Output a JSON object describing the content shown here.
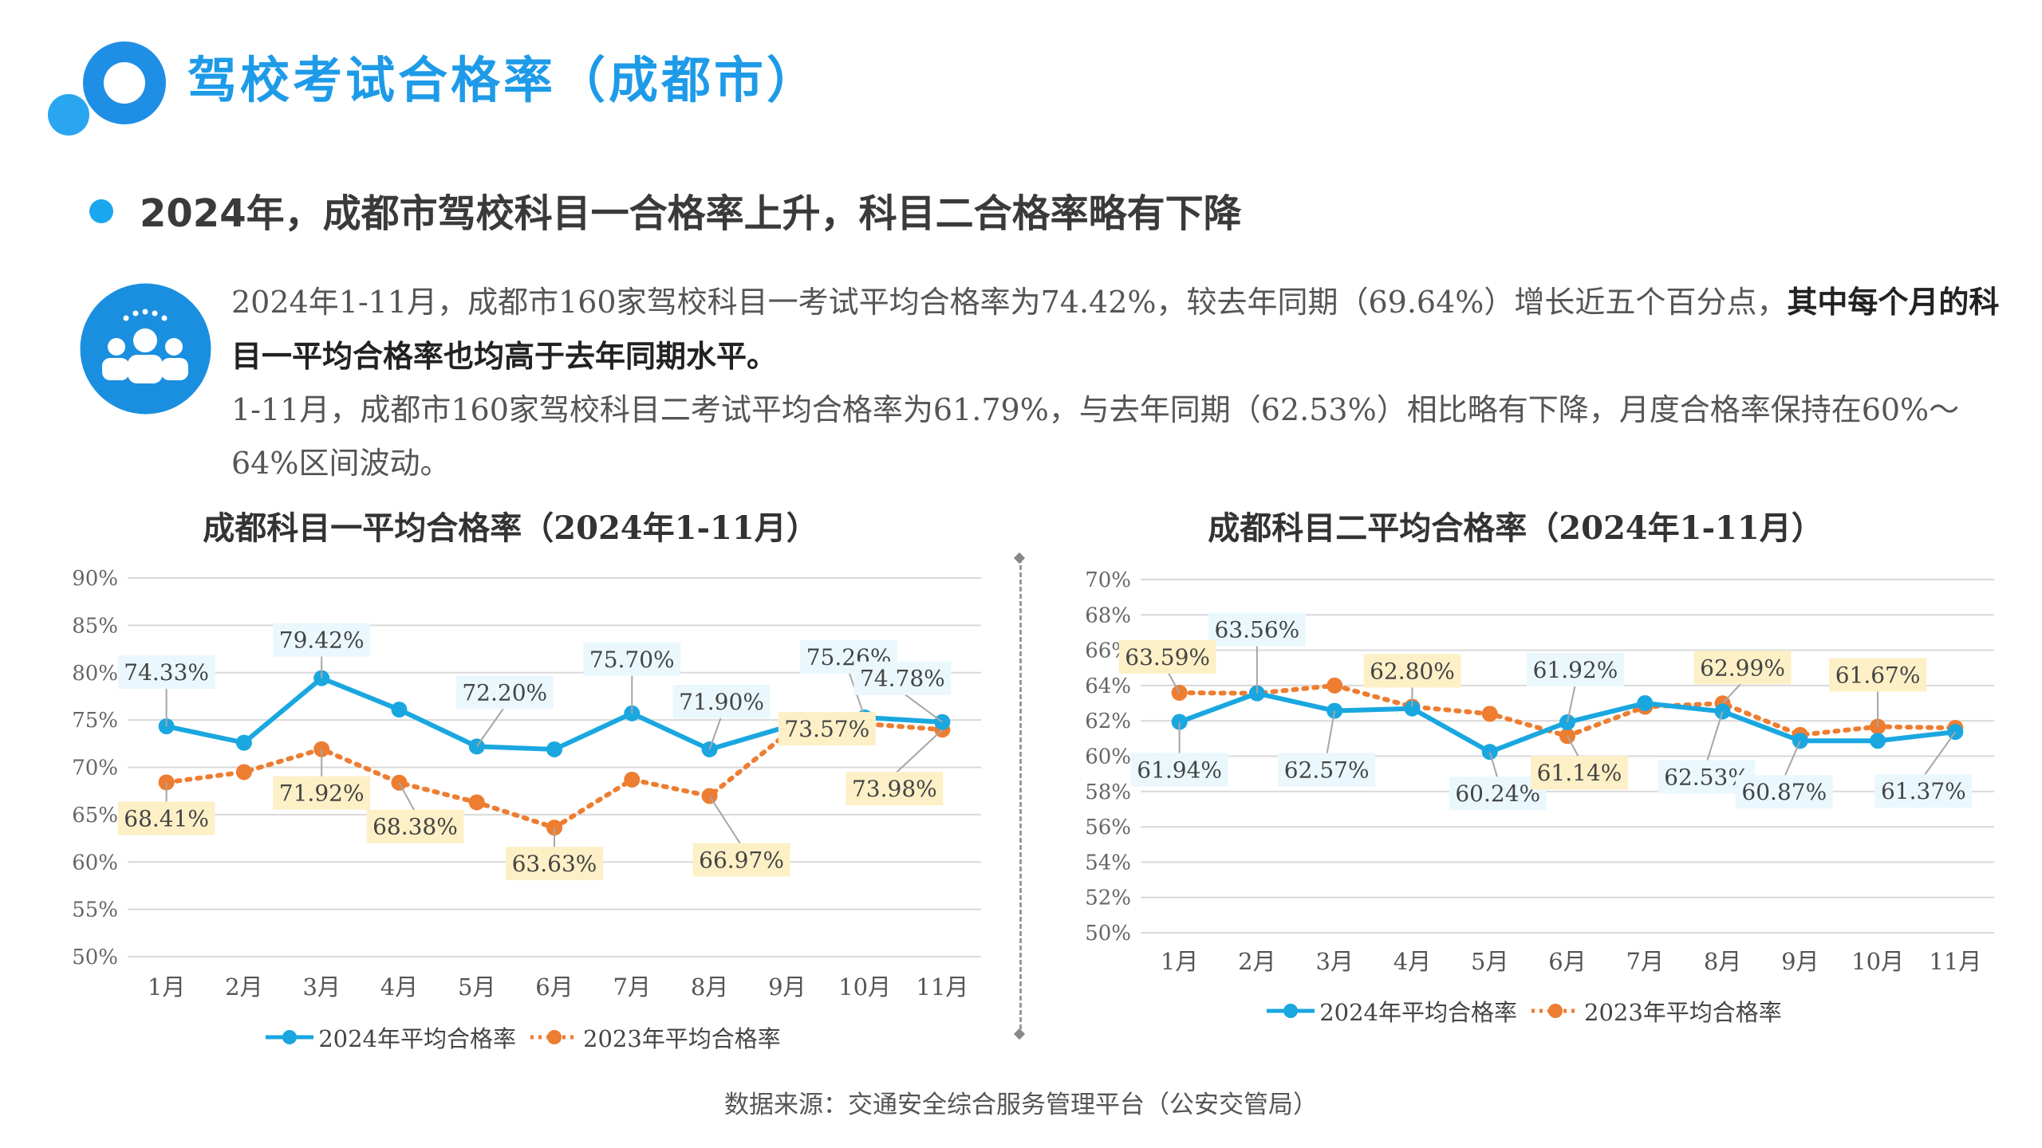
{
  "page": {
    "title": "驾校考试合格率（成都市）",
    "subtitle": "2024年，成都市驾校科目一合格率上升，科目二合格率略有下降",
    "paragraph1_normal": "2024年1-11月，成都市160家驾校科目一考试平均合格率为74.42%，较去年同期（69.64%）增长近五个百分点，",
    "paragraph1_bold": "其中每个月的科目一平均合格率也均高于去年同期水平。",
    "paragraph2": "1-11月，成都市160家驾校科目二考试平均合格率为61.79%，与去年同期（62.53%）相比略有下降，月度合格率保持在60%～64%区间波动。",
    "source": "数据来源：交通安全综合服务管理平台（公安交管局）"
  },
  "colors": {
    "title": "#1e9be8",
    "series2024": "#1aa7e0",
    "series2023": "#ed7d31",
    "label2024_bg": "#eaf8fd",
    "label2023_bg": "#fdf0c7"
  },
  "chart_data": [
    {
      "type": "line",
      "title": "成都科目一平均合格率（2024年1-11月）",
      "categories": [
        "1月",
        "2月",
        "3月",
        "4月",
        "5月",
        "6月",
        "7月",
        "8月",
        "9月",
        "10月",
        "11月"
      ],
      "ylim": [
        50,
        90
      ],
      "ytick_step": 5,
      "yticks": [
        "50%",
        "55%",
        "60%",
        "65%",
        "70%",
        "75%",
        "80%",
        "85%",
        "90%"
      ],
      "grid": true,
      "legend": "bottom",
      "series": [
        {
          "name": "2024年平均合格率",
          "values": [
            74.33,
            72.6,
            79.42,
            76.1,
            72.2,
            71.9,
            75.7,
            71.9,
            74.3,
            75.26,
            74.78
          ],
          "labels": [
            "74.33%",
            "",
            "79.42%",
            "",
            "72.20%",
            "",
            "75.70%",
            "71.90%",
            "",
            "75.26%",
            "74.78%"
          ]
        },
        {
          "name": "2023年平均合格率",
          "values": [
            68.41,
            69.5,
            71.92,
            68.38,
            66.3,
            63.63,
            68.7,
            66.97,
            73.57,
            74.6,
            73.98
          ],
          "labels": [
            "68.41%",
            "",
            "71.92%",
            "68.38%",
            "",
            "63.63%",
            "",
            "66.97%",
            "73.57%",
            "",
            "73.98%"
          ]
        }
      ]
    },
    {
      "type": "line",
      "title": "成都科目二平均合格率（2024年1-11月）",
      "categories": [
        "1月",
        "2月",
        "3月",
        "4月",
        "5月",
        "6月",
        "7月",
        "8月",
        "9月",
        "10月",
        "11月"
      ],
      "ylim": [
        50,
        70
      ],
      "ytick_step": 2,
      "yticks": [
        "50%",
        "52%",
        "54%",
        "56%",
        "58%",
        "60%",
        "62%",
        "64%",
        "66%",
        "68%",
        "70%"
      ],
      "grid": true,
      "legend": "bottom",
      "series": [
        {
          "name": "2024年平均合格率",
          "values": [
            61.94,
            63.56,
            62.57,
            62.7,
            60.24,
            61.92,
            63.0,
            62.53,
            60.87,
            60.87,
            61.37
          ],
          "labels": [
            "61.94%",
            "63.56%",
            "62.57%",
            "",
            "60.24%",
            "61.92%",
            "",
            "62.53%",
            "60.87%",
            "",
            "61.37%"
          ]
        },
        {
          "name": "2023年平均合格率",
          "values": [
            63.59,
            63.56,
            64.0,
            62.8,
            62.4,
            61.14,
            62.8,
            62.99,
            61.2,
            61.67,
            61.6
          ],
          "labels": [
            "63.59%",
            "",
            "",
            "62.80%",
            "",
            "61.14%",
            "",
            "62.99%",
            "",
            "61.67%",
            ""
          ]
        }
      ]
    }
  ]
}
